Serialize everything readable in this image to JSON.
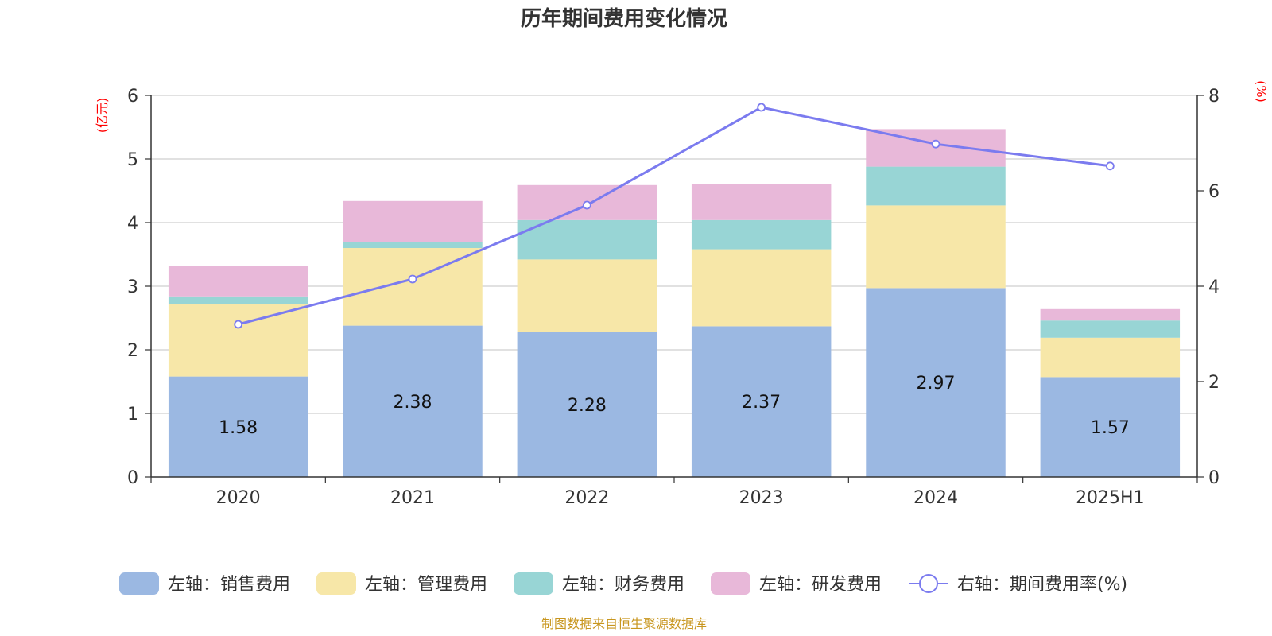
{
  "chart_data": {
    "type": "bar",
    "title": "历年期间费用变化情况",
    "categories": [
      "2020",
      "2021",
      "2022",
      "2023",
      "2024",
      "2025H1"
    ],
    "left_axis": {
      "unit": "(亿元)",
      "ylim": [
        0,
        6
      ],
      "ticks": [
        0,
        1,
        2,
        3,
        4,
        5,
        6
      ]
    },
    "right_axis": {
      "unit": "(%)",
      "ylim": [
        0,
        8
      ],
      "ticks": [
        0,
        2,
        4,
        6,
        8
      ]
    },
    "series": [
      {
        "name": "左轴：销售费用",
        "type": "bar",
        "axis": "left",
        "color": "#9bb8e2",
        "values": [
          1.58,
          2.38,
          2.28,
          2.37,
          2.97,
          1.57
        ],
        "show_labels": true
      },
      {
        "name": "左轴：管理费用",
        "type": "bar",
        "axis": "left",
        "color": "#f7e7a8",
        "values": [
          1.14,
          1.22,
          1.14,
          1.21,
          1.3,
          0.62
        ],
        "show_labels": false
      },
      {
        "name": "左轴：财务费用",
        "type": "bar",
        "axis": "left",
        "color": "#98d5d5",
        "values": [
          0.12,
          0.1,
          0.62,
          0.46,
          0.61,
          0.27
        ],
        "show_labels": false
      },
      {
        "name": "左轴：研发费用",
        "type": "bar",
        "axis": "left",
        "color": "#e8b8d9",
        "values": [
          0.48,
          0.64,
          0.55,
          0.57,
          0.59,
          0.18
        ],
        "show_labels": false
      },
      {
        "name": "右轴：期间费用率(%)",
        "type": "line",
        "axis": "right",
        "color": "#7b7bef",
        "values": [
          3.2,
          4.15,
          5.7,
          7.75,
          6.98,
          6.52
        ],
        "show_labels": false
      }
    ],
    "grid": true,
    "legend_position": "bottom"
  },
  "footer": {
    "source": "制图数据来自恒生聚源数据库"
  }
}
